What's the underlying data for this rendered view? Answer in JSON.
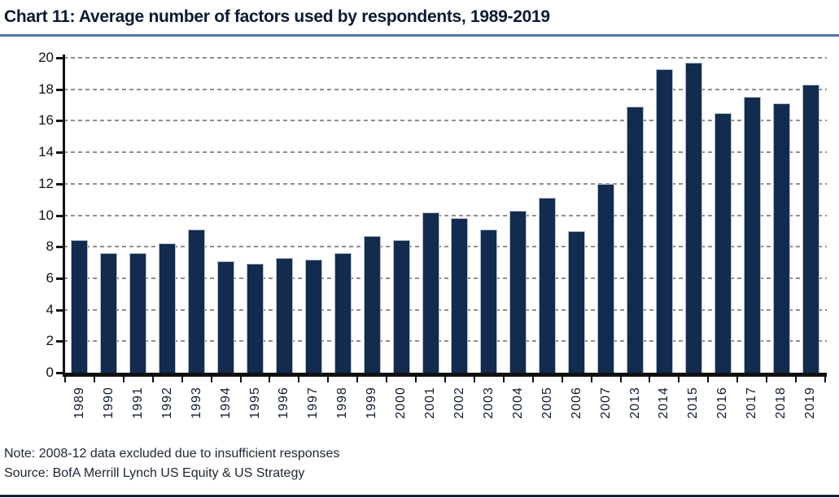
{
  "header": {
    "title": "Chart 11: Average number of factors used by respondents, 1989-2019"
  },
  "footer": {
    "note": "Note: 2008-12 data excluded due to insufficient responses",
    "source": "Source: BofA Merrill Lynch US Equity & US Strategy"
  },
  "colors": {
    "bar_fill": "#122b4e",
    "bar_edge": "#b3c0ce",
    "title_text": "#0c1b33",
    "title_underline": "#4e73a4",
    "gridline": "#8f8f8f",
    "axis": "#111111",
    "tick_label": "#111111",
    "footer_text": "#1c2633",
    "bottom_rule": "#152238"
  },
  "chart_data": {
    "type": "bar",
    "title": "Chart 11: Average number of factors used by respondents, 1989-2019",
    "categories": [
      "1989",
      "1990",
      "1991",
      "1992",
      "1993",
      "1994",
      "1995",
      "1996",
      "1997",
      "1998",
      "1999",
      "2000",
      "2001",
      "2002",
      "2003",
      "2004",
      "2005",
      "2006",
      "2007",
      "2013",
      "2014",
      "2015",
      "2016",
      "2017",
      "2018",
      "2019"
    ],
    "values": [
      8.4,
      7.6,
      7.6,
      8.2,
      9.1,
      7.1,
      6.9,
      7.3,
      7.2,
      7.6,
      8.7,
      8.4,
      10.2,
      9.8,
      9.1,
      10.3,
      11.1,
      9.0,
      12.0,
      16.9,
      19.3,
      19.7,
      16.5,
      17.5,
      17.1,
      18.3
    ],
    "xlabel": "",
    "ylabel": "",
    "ylim": [
      0,
      20
    ],
    "yticks": [
      0,
      2,
      4,
      6,
      8,
      10,
      12,
      14,
      16,
      18,
      20
    ],
    "grid": "horizontal-dashed",
    "legend": "none",
    "x_tick_style": "boundary ticks between categories, labels rotated 90deg",
    "note": "2008-12 data excluded due to insufficient responses"
  }
}
